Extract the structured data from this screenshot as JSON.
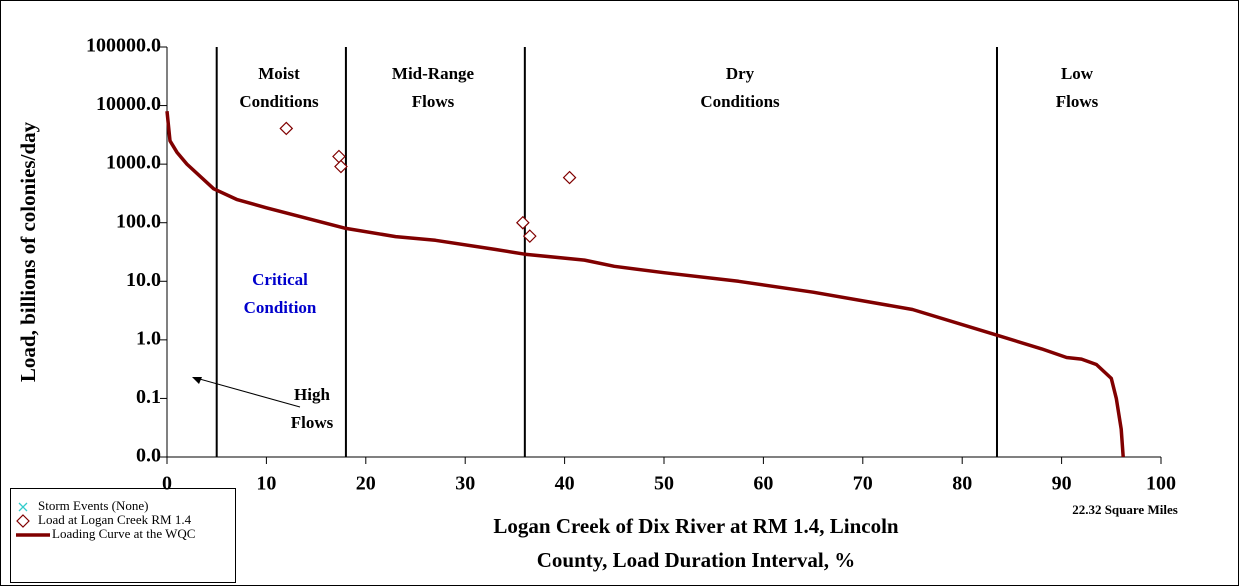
{
  "chart_data": {
    "type": "line",
    "ylabel": "Load, billions of colonies/day",
    "xlabel": [
      "Logan Creek of Dix River at RM 1.4, Lincoln",
      "County, Load Duration Interval, %"
    ],
    "note": "22.32 Square Miles",
    "log_y": true,
    "xlim": [
      0,
      100
    ],
    "xticks": [
      0,
      10,
      20,
      30,
      40,
      50,
      60,
      70,
      80,
      90,
      100
    ],
    "ylim": [
      0.01,
      100000
    ],
    "yticks": [
      {
        "value": 0.01,
        "label": "0.0"
      },
      {
        "value": 0.1,
        "label": "0.1"
      },
      {
        "value": 1,
        "label": "1.0"
      },
      {
        "value": 10,
        "label": "10.0"
      },
      {
        "value": 100,
        "label": "100.0"
      },
      {
        "value": 1000,
        "label": "1000.0"
      },
      {
        "value": 10000,
        "label": "10000.0"
      },
      {
        "value": 100000,
        "label": "100000.0"
      }
    ],
    "dividers": [
      5,
      18,
      36,
      83.5
    ],
    "annotations": [
      {
        "lines": [
          "Moist",
          "Conditions"
        ]
      },
      {
        "lines": [
          "Mid-Range",
          "Flows"
        ]
      },
      {
        "lines": [
          "Dry",
          "Conditions"
        ]
      },
      {
        "lines": [
          "Low",
          "Flows"
        ]
      },
      {
        "lines": [
          "Critical",
          "Condition"
        ],
        "color": "#0000cc"
      },
      {
        "lines": [
          "High",
          "Flows"
        ]
      }
    ],
    "series": [
      {
        "name": "Storm Events (None)",
        "type": "scatter",
        "marker": "x",
        "color": "#33cccc",
        "x": [],
        "values": []
      },
      {
        "name": "Load at Logan Creek RM 1.4",
        "type": "scatter",
        "marker": "diamond",
        "color": "#800000",
        "x": [
          12,
          17.3,
          17.5,
          35.8,
          36.5,
          40.5
        ],
        "values": [
          4070,
          1350,
          910,
          100,
          59,
          590
        ]
      },
      {
        "name": "Loading Curve at the WQC",
        "type": "line",
        "color": "#800000",
        "x": [
          0,
          0.3,
          1,
          2,
          4.7,
          7,
          10,
          18,
          23,
          27,
          33,
          36,
          42,
          45,
          50,
          57.5,
          65,
          75,
          83.5,
          88,
          90.5,
          92,
          93.5,
          95,
          95.5,
          96,
          96.2
        ],
        "values": [
          8000,
          2500,
          1600,
          1000,
          380,
          250,
          180,
          80,
          58,
          50,
          35,
          29,
          23,
          18,
          14,
          10,
          6.5,
          3.3,
          1.2,
          0.7,
          0.5,
          0.47,
          0.38,
          0.22,
          0.1,
          0.03,
          0.01
        ]
      }
    ]
  }
}
